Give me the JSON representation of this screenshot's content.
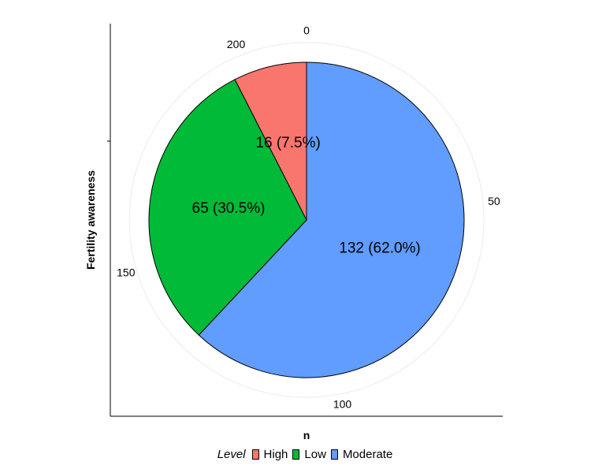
{
  "chart_data": {
    "type": "pie",
    "categories": [
      "High",
      "Low",
      "Moderate"
    ],
    "values": [
      16,
      65,
      132
    ],
    "slice_labels": [
      "16 (7.5%)",
      "65 (30.5%)",
      "132 (62.0%)"
    ],
    "colors": [
      "#F8766D",
      "#00BA38",
      "#619CFF"
    ],
    "xlabel": "n",
    "ylabel": "Fertility awareness",
    "theta_ticks": [
      "0",
      "50",
      "100",
      "150",
      "200"
    ],
    "theta_tick_values": [
      0,
      50,
      100,
      150,
      200
    ],
    "legend": {
      "title": "Level",
      "position": "bottom",
      "entries": [
        "High",
        "Low",
        "Moderate"
      ]
    }
  }
}
